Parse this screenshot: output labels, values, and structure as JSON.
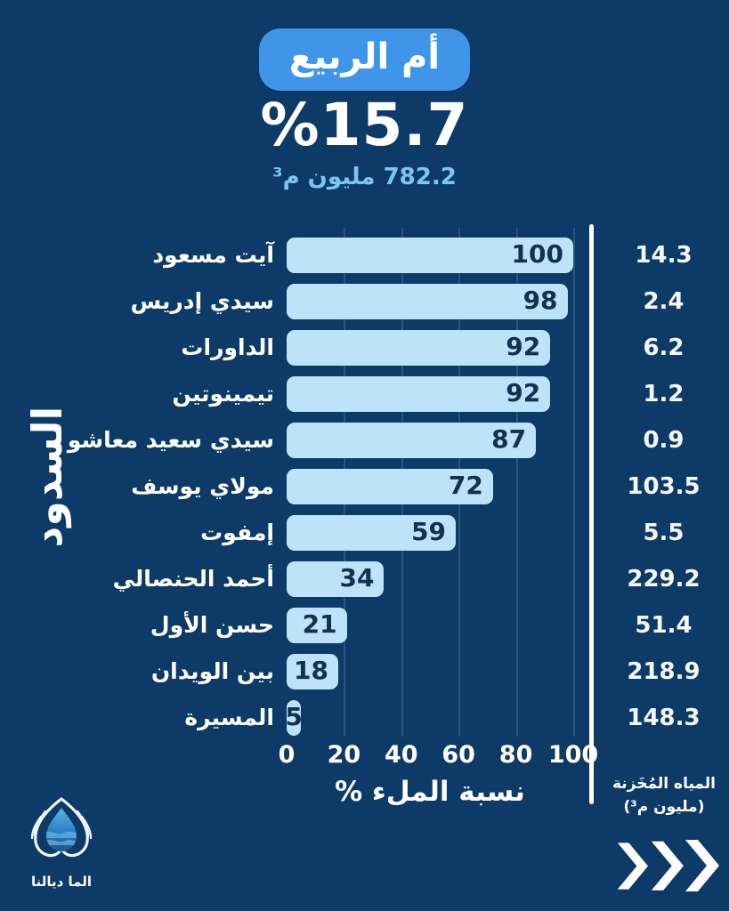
{
  "header": {
    "basin_badge": "أم الربيع",
    "fill_percent": "%15.7",
    "stored_total": "782.2 مليون م³"
  },
  "left_axis_title": "السدود",
  "chart_data": {
    "type": "bar",
    "orientation": "horizontal",
    "title": "أم الربيع",
    "xlabel": "نسبة الملء %",
    "xlim": [
      0,
      100
    ],
    "xticks": [
      0,
      20,
      40,
      60,
      80,
      100
    ],
    "grid": "vertical",
    "bar_color": "#bce3f8",
    "rows": [
      {
        "label": "آيت مسعود",
        "value": 100,
        "stored": "14.3"
      },
      {
        "label": "سيدي إدريس",
        "value": 98,
        "stored": "2.4"
      },
      {
        "label": "الداورات",
        "value": 92,
        "stored": "6.2"
      },
      {
        "label": "تيمينوتين",
        "value": 92,
        "stored": "1.2"
      },
      {
        "label": "سيدي سعيد معاشو",
        "value": 87,
        "stored": "0.9"
      },
      {
        "label": "مولاي يوسف",
        "value": 72,
        "stored": "103.5"
      },
      {
        "label": "إمفوت",
        "value": 59,
        "stored": "5.5"
      },
      {
        "label": "أحمد الحنصالي",
        "value": 34,
        "stored": "229.2"
      },
      {
        "label": "حسن الأول",
        "value": 21,
        "stored": "51.4"
      },
      {
        "label": "بين الويدان",
        "value": 18,
        "stored": "218.9"
      },
      {
        "label": "المسيرة",
        "value": 5,
        "stored": "148.3"
      }
    ],
    "right_column_header_line1": "المياه المُخَزنة",
    "right_column_header_line2": "(مليون م³)"
  },
  "footer": {
    "logo_text": "الما ديالنا"
  },
  "colors": {
    "background": "#0d3a67",
    "badge": "#3f96e8",
    "bar": "#bce3f8",
    "subtitle": "#7ec4ef",
    "bar_value_text": "#12304f",
    "text": "#ffffff"
  }
}
